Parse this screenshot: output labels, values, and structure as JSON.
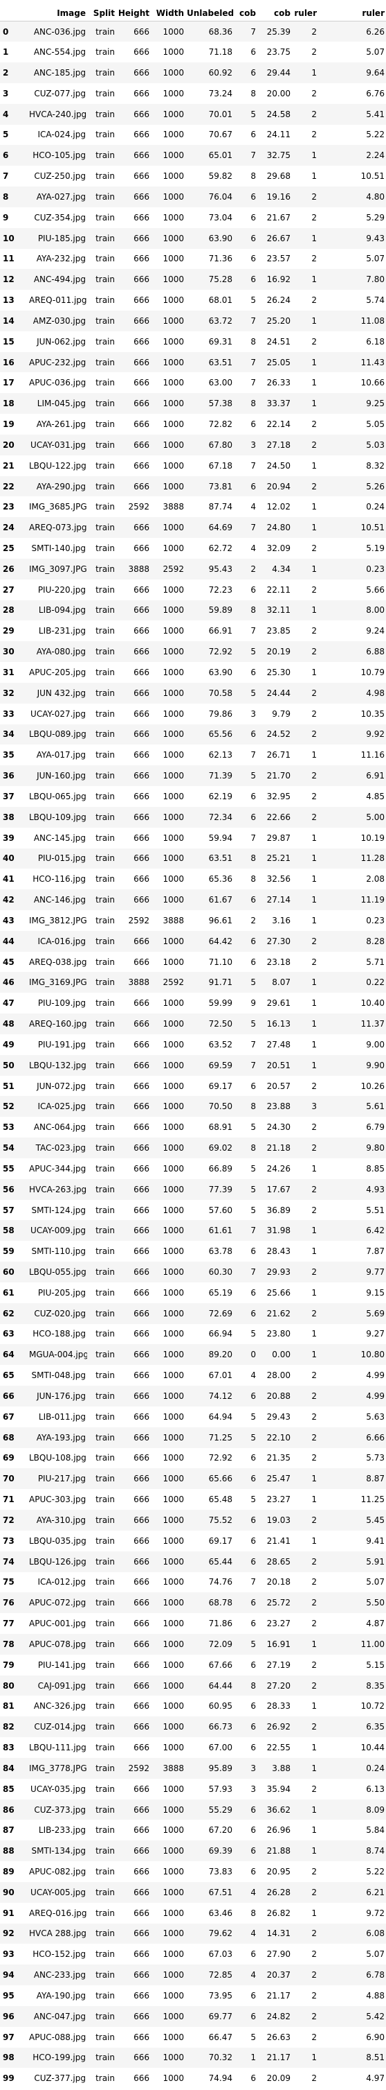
{
  "columns": [
    "",
    "Image",
    "Split",
    "Height",
    "Width",
    "Unlabeled",
    "cob",
    "cob",
    "ruler",
    "ruler"
  ],
  "rows": [
    [
      "0",
      "ANC-036.jpg",
      "train",
      "666",
      "1000",
      "68.36",
      "7",
      "25.39",
      "2",
      "6.26"
    ],
    [
      "1",
      "ANC-554.jpg",
      "train",
      "666",
      "1000",
      "71.18",
      "6",
      "23.75",
      "2",
      "5.07"
    ],
    [
      "2",
      "ANC-185.jpg",
      "train",
      "666",
      "1000",
      "60.92",
      "6",
      "29.44",
      "1",
      "9.64"
    ],
    [
      "3",
      "CUZ-077.jpg",
      "train",
      "666",
      "1000",
      "73.24",
      "8",
      "20.00",
      "2",
      "6.76"
    ],
    [
      "4",
      "HVCA-240.jpg",
      "train",
      "666",
      "1000",
      "70.01",
      "5",
      "24.58",
      "2",
      "5.41"
    ],
    [
      "5",
      "ICA-024.jpg",
      "train",
      "666",
      "1000",
      "70.67",
      "6",
      "24.11",
      "2",
      "5.22"
    ],
    [
      "6",
      "HCO-105.jpg",
      "train",
      "666",
      "1000",
      "65.01",
      "7",
      "32.75",
      "1",
      "2.24"
    ],
    [
      "7",
      "CUZ-250.jpg",
      "train",
      "666",
      "1000",
      "59.82",
      "8",
      "29.68",
      "1",
      "10.51"
    ],
    [
      "8",
      "AYA-027.jpg",
      "train",
      "666",
      "1000",
      "76.04",
      "6",
      "19.16",
      "2",
      "4.80"
    ],
    [
      "9",
      "CUZ-354.jpg",
      "train",
      "666",
      "1000",
      "73.04",
      "6",
      "21.67",
      "2",
      "5.29"
    ],
    [
      "10",
      "PIU-185.jpg",
      "train",
      "666",
      "1000",
      "63.90",
      "6",
      "26.67",
      "1",
      "9.43"
    ],
    [
      "11",
      "AYA-232.jpg",
      "train",
      "666",
      "1000",
      "71.36",
      "6",
      "23.57",
      "2",
      "5.07"
    ],
    [
      "12",
      "ANC-494.jpg",
      "train",
      "666",
      "1000",
      "75.28",
      "6",
      "16.92",
      "1",
      "7.80"
    ],
    [
      "13",
      "AREQ-011.jpg",
      "train",
      "666",
      "1000",
      "68.01",
      "5",
      "26.24",
      "2",
      "5.74"
    ],
    [
      "14",
      "AMZ-030.jpg",
      "train",
      "666",
      "1000",
      "63.72",
      "7",
      "25.20",
      "1",
      "11.08"
    ],
    [
      "15",
      "JUN-062.jpg",
      "train",
      "666",
      "1000",
      "69.31",
      "8",
      "24.51",
      "2",
      "6.18"
    ],
    [
      "16",
      "APUC-232.jpg",
      "train",
      "666",
      "1000",
      "63.51",
      "7",
      "25.05",
      "1",
      "11.43"
    ],
    [
      "17",
      "APUC-036.jpg",
      "train",
      "666",
      "1000",
      "63.00",
      "7",
      "26.33",
      "1",
      "10.66"
    ],
    [
      "18",
      "LIM-045.jpg",
      "train",
      "666",
      "1000",
      "57.38",
      "8",
      "33.37",
      "1",
      "9.25"
    ],
    [
      "19",
      "AYA-261.jpg",
      "train",
      "666",
      "1000",
      "72.82",
      "6",
      "22.14",
      "2",
      "5.05"
    ],
    [
      "20",
      "UCAY-031.jpg",
      "train",
      "666",
      "1000",
      "67.80",
      "3",
      "27.18",
      "2",
      "5.03"
    ],
    [
      "21",
      "LBQU-122.jpg",
      "train",
      "666",
      "1000",
      "67.18",
      "7",
      "24.50",
      "1",
      "8.32"
    ],
    [
      "22",
      "AYA-290.jpg",
      "train",
      "666",
      "1000",
      "73.81",
      "6",
      "20.94",
      "2",
      "5.26"
    ],
    [
      "23",
      "IMG_3685.JPG",
      "train",
      "2592",
      "3888",
      "87.74",
      "4",
      "12.02",
      "1",
      "0.24"
    ],
    [
      "24",
      "AREQ-073.jpg",
      "train",
      "666",
      "1000",
      "64.69",
      "7",
      "24.80",
      "1",
      "10.51"
    ],
    [
      "25",
      "SMTI-140.jpg",
      "train",
      "666",
      "1000",
      "62.72",
      "4",
      "32.09",
      "2",
      "5.19"
    ],
    [
      "26",
      "IMG_3097.JPG",
      "train",
      "3888",
      "2592",
      "95.43",
      "2",
      "4.34",
      "1",
      "0.23"
    ],
    [
      "27",
      "PIU-220.jpg",
      "train",
      "666",
      "1000",
      "72.23",
      "6",
      "22.11",
      "2",
      "5.66"
    ],
    [
      "28",
      "LIB-094.jpg",
      "train",
      "666",
      "1000",
      "59.89",
      "8",
      "32.11",
      "1",
      "8.00"
    ],
    [
      "29",
      "LIB-231.jpg",
      "train",
      "666",
      "1000",
      "66.91",
      "7",
      "23.85",
      "2",
      "9.24"
    ],
    [
      "30",
      "AYA-080.jpg",
      "train",
      "666",
      "1000",
      "72.92",
      "5",
      "20.19",
      "2",
      "6.88"
    ],
    [
      "31",
      "APUC-205.jpg",
      "train",
      "666",
      "1000",
      "63.90",
      "6",
      "25.30",
      "1",
      "10.79"
    ],
    [
      "32",
      "JUN 432.jpg",
      "train",
      "666",
      "1000",
      "70.58",
      "5",
      "24.44",
      "2",
      "4.98"
    ],
    [
      "33",
      "UCAY-027.jpg",
      "train",
      "666",
      "1000",
      "79.86",
      "3",
      "9.79",
      "2",
      "10.35"
    ],
    [
      "34",
      "LBQU-089.jpg",
      "train",
      "666",
      "1000",
      "65.56",
      "6",
      "24.52",
      "2",
      "9.92"
    ],
    [
      "35",
      "AYA-017.jpg",
      "train",
      "666",
      "1000",
      "62.13",
      "7",
      "26.71",
      "1",
      "11.16"
    ],
    [
      "36",
      "JUN-160.jpg",
      "train",
      "666",
      "1000",
      "71.39",
      "5",
      "21.70",
      "2",
      "6.91"
    ],
    [
      "37",
      "LBQU-065.jpg",
      "train",
      "666",
      "1000",
      "62.19",
      "6",
      "32.95",
      "2",
      "4.85"
    ],
    [
      "38",
      "LBQU-109.jpg",
      "train",
      "666",
      "1000",
      "72.34",
      "6",
      "22.66",
      "2",
      "5.00"
    ],
    [
      "39",
      "ANC-145.jpg",
      "train",
      "666",
      "1000",
      "59.94",
      "7",
      "29.87",
      "1",
      "10.19"
    ],
    [
      "40",
      "PIU-015.jpg",
      "train",
      "666",
      "1000",
      "63.51",
      "8",
      "25.21",
      "1",
      "11.28"
    ],
    [
      "41",
      "HCO-116.jpg",
      "train",
      "666",
      "1000",
      "65.36",
      "8",
      "32.56",
      "1",
      "2.08"
    ],
    [
      "42",
      "ANC-146.jpg",
      "train",
      "666",
      "1000",
      "61.67",
      "6",
      "27.14",
      "1",
      "11.19"
    ],
    [
      "43",
      "IMG_3812.JPG",
      "train",
      "2592",
      "3888",
      "96.61",
      "2",
      "3.16",
      "1",
      "0.23"
    ],
    [
      "44",
      "ICA-016.jpg",
      "train",
      "666",
      "1000",
      "64.42",
      "6",
      "27.30",
      "2",
      "8.28"
    ],
    [
      "45",
      "AREQ-038.jpg",
      "train",
      "666",
      "1000",
      "71.10",
      "6",
      "23.18",
      "2",
      "5.71"
    ],
    [
      "46",
      "IMG_3169.JPG",
      "train",
      "3888",
      "2592",
      "91.71",
      "5",
      "8.07",
      "1",
      "0.22"
    ],
    [
      "47",
      "PIU-109.jpg",
      "train",
      "666",
      "1000",
      "59.99",
      "9",
      "29.61",
      "1",
      "10.40"
    ],
    [
      "48",
      "AREQ-160.jpg",
      "train",
      "666",
      "1000",
      "72.50",
      "5",
      "16.13",
      "1",
      "11.37"
    ],
    [
      "49",
      "PIU-191.jpg",
      "train",
      "666",
      "1000",
      "63.52",
      "7",
      "27.48",
      "1",
      "9.00"
    ],
    [
      "50",
      "LBQU-132.jpg",
      "train",
      "666",
      "1000",
      "69.59",
      "7",
      "20.51",
      "1",
      "9.90"
    ],
    [
      "51",
      "JUN-072.jpg",
      "train",
      "666",
      "1000",
      "69.17",
      "6",
      "20.57",
      "2",
      "10.26"
    ],
    [
      "52",
      "ICA-025.jpg",
      "train",
      "666",
      "1000",
      "70.50",
      "8",
      "23.88",
      "3",
      "5.61"
    ],
    [
      "53",
      "ANC-064.jpg",
      "train",
      "666",
      "1000",
      "68.91",
      "5",
      "24.30",
      "2",
      "6.79"
    ],
    [
      "54",
      "TAC-023.jpg",
      "train",
      "666",
      "1000",
      "69.02",
      "8",
      "21.18",
      "2",
      "9.80"
    ],
    [
      "55",
      "APUC-344.jpg",
      "train",
      "666",
      "1000",
      "66.89",
      "5",
      "24.26",
      "1",
      "8.85"
    ],
    [
      "56",
      "HVCA-263.jpg",
      "train",
      "666",
      "1000",
      "77.39",
      "5",
      "17.67",
      "2",
      "4.93"
    ],
    [
      "57",
      "SMTI-124.jpg",
      "train",
      "666",
      "1000",
      "57.60",
      "5",
      "36.89",
      "2",
      "5.51"
    ],
    [
      "58",
      "UCAY-009.jpg",
      "train",
      "666",
      "1000",
      "61.61",
      "7",
      "31.98",
      "1",
      "6.42"
    ],
    [
      "59",
      "SMTI-110.jpg",
      "train",
      "666",
      "1000",
      "63.78",
      "6",
      "28.43",
      "1",
      "7.87"
    ],
    [
      "60",
      "LBQU-055.jpg",
      "train",
      "666",
      "1000",
      "60.30",
      "7",
      "29.93",
      "2",
      "9.77"
    ],
    [
      "61",
      "PIU-205.jpg",
      "train",
      "666",
      "1000",
      "65.19",
      "6",
      "25.66",
      "1",
      "9.15"
    ],
    [
      "62",
      "CUZ-020.jpg",
      "train",
      "666",
      "1000",
      "72.69",
      "6",
      "21.62",
      "2",
      "5.69"
    ],
    [
      "63",
      "HCO-188.jpg",
      "train",
      "666",
      "1000",
      "66.94",
      "5",
      "23.80",
      "1",
      "9.27"
    ],
    [
      "64",
      "MGUA-004.jpg",
      "train",
      "666",
      "1000",
      "89.20",
      "0",
      "0.00",
      "1",
      "10.80"
    ],
    [
      "65",
      "SMTI-048.jpg",
      "train",
      "666",
      "1000",
      "67.01",
      "4",
      "28.00",
      "2",
      "4.99"
    ],
    [
      "66",
      "JUN-176.jpg",
      "train",
      "666",
      "1000",
      "74.12",
      "6",
      "20.88",
      "2",
      "4.99"
    ],
    [
      "67",
      "LIB-011.jpg",
      "train",
      "666",
      "1000",
      "64.94",
      "5",
      "29.43",
      "2",
      "5.63"
    ],
    [
      "68",
      "AYA-193.jpg",
      "train",
      "666",
      "1000",
      "71.25",
      "5",
      "22.10",
      "2",
      "6.66"
    ],
    [
      "69",
      "LBQU-108.jpg",
      "train",
      "666",
      "1000",
      "72.92",
      "6",
      "21.35",
      "2",
      "5.73"
    ],
    [
      "70",
      "PIU-217.jpg",
      "train",
      "666",
      "1000",
      "65.66",
      "6",
      "25.47",
      "1",
      "8.87"
    ],
    [
      "71",
      "APUC-303.jpg",
      "train",
      "666",
      "1000",
      "65.48",
      "5",
      "23.27",
      "1",
      "11.25"
    ],
    [
      "72",
      "AYA-310.jpg",
      "train",
      "666",
      "1000",
      "75.52",
      "6",
      "19.03",
      "2",
      "5.45"
    ],
    [
      "73",
      "LBQU-035.jpg",
      "train",
      "666",
      "1000",
      "69.17",
      "6",
      "21.41",
      "1",
      "9.41"
    ],
    [
      "74",
      "LBQU-126.jpg",
      "train",
      "666",
      "1000",
      "65.44",
      "6",
      "28.65",
      "2",
      "5.91"
    ],
    [
      "75",
      "ICA-012.jpg",
      "train",
      "666",
      "1000",
      "74.76",
      "7",
      "20.18",
      "2",
      "5.07"
    ],
    [
      "76",
      "APUC-072.jpg",
      "train",
      "666",
      "1000",
      "68.78",
      "6",
      "25.72",
      "2",
      "5.50"
    ],
    [
      "77",
      "APUC-001.jpg",
      "train",
      "666",
      "1000",
      "71.86",
      "6",
      "23.27",
      "2",
      "4.87"
    ],
    [
      "78",
      "APUC-078.jpg",
      "train",
      "666",
      "1000",
      "72.09",
      "5",
      "16.91",
      "1",
      "11.00"
    ],
    [
      "79",
      "PIU-141.jpg",
      "train",
      "666",
      "1000",
      "67.66",
      "6",
      "27.19",
      "2",
      "5.15"
    ],
    [
      "80",
      "CAJ-091.jpg",
      "train",
      "666",
      "1000",
      "64.44",
      "8",
      "27.20",
      "2",
      "8.35"
    ],
    [
      "81",
      "ANC-326.jpg",
      "train",
      "666",
      "1000",
      "60.95",
      "6",
      "28.33",
      "1",
      "10.72"
    ],
    [
      "82",
      "CUZ-014.jpg",
      "train",
      "666",
      "1000",
      "66.73",
      "6",
      "26.92",
      "2",
      "6.35"
    ],
    [
      "83",
      "LBQU-111.jpg",
      "train",
      "666",
      "1000",
      "67.00",
      "6",
      "22.55",
      "1",
      "10.44"
    ],
    [
      "84",
      "IMG_3778.JPG",
      "train",
      "2592",
      "3888",
      "95.89",
      "3",
      "3.88",
      "1",
      "0.24"
    ],
    [
      "85",
      "UCAY-035.jpg",
      "train",
      "666",
      "1000",
      "57.93",
      "3",
      "35.94",
      "2",
      "6.13"
    ],
    [
      "86",
      "CUZ-373.jpg",
      "train",
      "666",
      "1000",
      "55.29",
      "6",
      "36.62",
      "1",
      "8.09"
    ],
    [
      "87",
      "LIB-233.jpg",
      "train",
      "666",
      "1000",
      "67.20",
      "6",
      "26.96",
      "1",
      "5.84"
    ],
    [
      "88",
      "SMTI-134.jpg",
      "train",
      "666",
      "1000",
      "69.39",
      "6",
      "21.88",
      "1",
      "8.74"
    ],
    [
      "89",
      "APUC-082.jpg",
      "train",
      "666",
      "1000",
      "73.83",
      "6",
      "20.95",
      "2",
      "5.22"
    ],
    [
      "90",
      "UCAY-005.jpg",
      "train",
      "666",
      "1000",
      "67.51",
      "4",
      "26.28",
      "2",
      "6.21"
    ],
    [
      "91",
      "AREQ-016.jpg",
      "train",
      "666",
      "1000",
      "63.46",
      "8",
      "26.82",
      "1",
      "9.72"
    ],
    [
      "92",
      "HVCA 288.jpg",
      "train",
      "666",
      "1000",
      "79.62",
      "4",
      "14.31",
      "2",
      "6.08"
    ],
    [
      "93",
      "HCO-152.jpg",
      "train",
      "666",
      "1000",
      "67.03",
      "6",
      "27.90",
      "2",
      "5.07"
    ],
    [
      "94",
      "ANC-233.jpg",
      "train",
      "666",
      "1000",
      "72.85",
      "4",
      "20.37",
      "2",
      "6.78"
    ],
    [
      "95",
      "AYA-190.jpg",
      "train",
      "666",
      "1000",
      "73.95",
      "6",
      "21.17",
      "2",
      "4.88"
    ],
    [
      "96",
      "ANC-047.jpg",
      "train",
      "666",
      "1000",
      "69.77",
      "6",
      "24.82",
      "2",
      "5.42"
    ],
    [
      "97",
      "APUC-088.jpg",
      "train",
      "666",
      "1000",
      "66.47",
      "5",
      "26.63",
      "2",
      "6.90"
    ],
    [
      "98",
      "HCO-199.jpg",
      "train",
      "666",
      "1000",
      "70.32",
      "1",
      "21.17",
      "1",
      "8.51"
    ],
    [
      "99",
      "CUZ-377.jpg",
      "train",
      "666",
      "1000",
      "74.94",
      "6",
      "20.09",
      "2",
      "4.97"
    ]
  ]
}
